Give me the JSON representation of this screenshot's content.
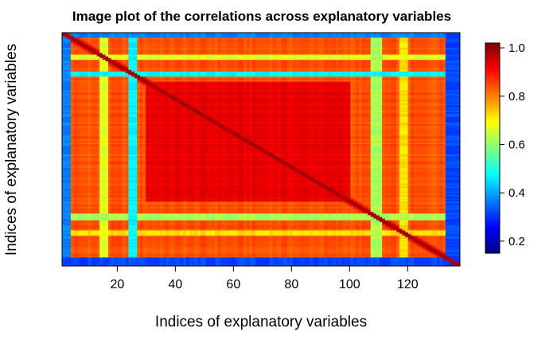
{
  "chart_data": {
    "type": "heatmap",
    "title": "Image plot of the correlations across explanatory variables",
    "xlabel": "Indices of explanatory variables",
    "ylabel": "Indices of explanatory variables",
    "xlim": [
      1,
      138
    ],
    "ylim": [
      1,
      138
    ],
    "x_ticks": [
      20,
      40,
      60,
      80,
      100,
      120
    ],
    "n_variables": 138,
    "diagonal_value": 1.0,
    "colorbar": {
      "range": [
        0.15,
        1.02
      ],
      "ticks": [
        0.2,
        0.4,
        0.6,
        0.8,
        1.0
      ],
      "tick_labels": [
        "0.2",
        "0.4",
        "0.6",
        "0.8",
        "1.0"
      ],
      "palette": [
        "#00007F",
        "#0000FF",
        "#007FFF",
        "#00FFFF",
        "#7FFF7F",
        "#FFFF00",
        "#FF7F00",
        "#FF0000",
        "#7F0000"
      ]
    },
    "low_correlation_bands": [
      {
        "from": 1,
        "to": 3,
        "value": 0.35
      },
      {
        "from": 14,
        "to": 16,
        "value": 0.65
      },
      {
        "from": 24,
        "to": 26,
        "value": 0.45
      },
      {
        "from": 108,
        "to": 111,
        "value": 0.6
      },
      {
        "from": 118,
        "to": 120,
        "value": 0.7
      },
      {
        "from": 134,
        "to": 138,
        "value": 0.3
      }
    ],
    "core_block": {
      "from": 30,
      "to": 100,
      "value": 0.93
    },
    "background_value": 0.84
  }
}
